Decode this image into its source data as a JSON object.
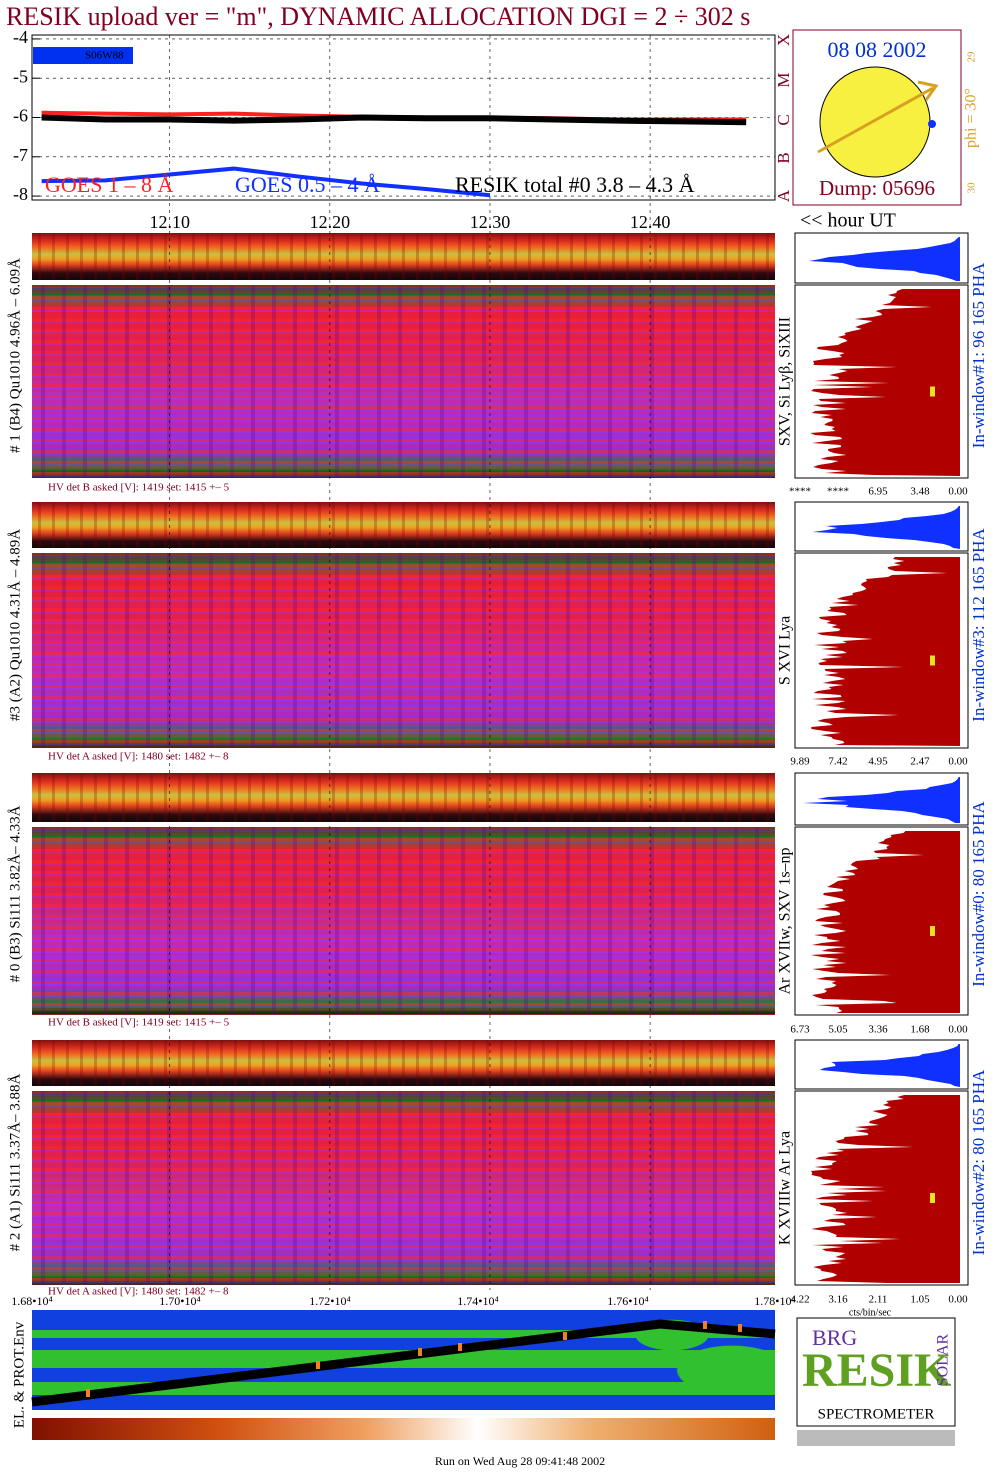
{
  "title": "RESIK upload ver = \"m\", DYNAMIC ALLOCATION  DGI =   2 ÷ 302 s",
  "chart_data": {
    "type": "line",
    "x": [
      12.02,
      12.06,
      12.1,
      12.14,
      12.18,
      12.22,
      12.26,
      12.3,
      12.34,
      12.38,
      12.42,
      12.46
    ],
    "series": [
      {
        "name": "GOES 1 – 8 Å",
        "color": "#ff2020",
        "values": [
          -5.88,
          -5.9,
          -5.92,
          -5.9,
          -5.95,
          -5.98,
          -6.0,
          -6.0,
          -6.02,
          -6.05,
          -6.05,
          -6.05
        ]
      },
      {
        "name": "GOES 0.5 – 4 Å",
        "color": "#1030ff",
        "values": [
          -7.62,
          -7.6,
          -7.45,
          -7.3,
          -7.5,
          -7.68,
          -7.82,
          -7.98,
          null,
          null,
          null,
          null
        ]
      },
      {
        "name": "RESIK total #0  3.8 – 4.3 Å",
        "color": "#000000",
        "values": [
          -6.0,
          -6.05,
          -6.05,
          -6.08,
          -6.05,
          -6.0,
          -6.02,
          -6.02,
          -6.05,
          -6.08,
          -6.1,
          -6.12
        ]
      }
    ],
    "xlim": [
      12.014,
      12.478
    ],
    "ylim": [
      -8.1,
      -3.9
    ],
    "xticks": [
      {
        "value": 12.1,
        "label": "12.10"
      },
      {
        "value": 12.2,
        "label": "12.20"
      },
      {
        "value": 12.3,
        "label": "12.30"
      },
      {
        "value": 12.4,
        "label": "12.40"
      }
    ],
    "yticks": [
      -4,
      -5,
      -6,
      -7,
      -8
    ],
    "grid": true,
    "position_label": "S06W88"
  },
  "sun": {
    "date": "08 08 2002",
    "phi": "phi = 30°",
    "top": "29",
    "bottom": "30",
    "dump": "Dump: 05696",
    "classes": [
      "X",
      "M",
      "C",
      "B",
      "A"
    ]
  },
  "time_label": "<< hour UT",
  "panels": [
    {
      "label": "# 1 (B4) Qu1010 4.96Å – 6.09Å",
      "lines": "SXV, Si Lyβ, SiXIII",
      "window": "In-window#1:   96 165  PHA",
      "hv": "HV det B asked [V]:  1419 set:  1415  +–    5",
      "scale": [
        "****",
        "****",
        "6.95",
        "3.48",
        "0.00"
      ]
    },
    {
      "label": "#3 (A2) Qu1010  4.31Å – 4.89Å",
      "lines": "S XVI Lya",
      "window": "In-window#3:  112 165  PHA",
      "hv": "HV det A asked [V]:  1480 set:  1482  +–    8",
      "scale": [
        "9.89",
        "7.42",
        "4.95",
        "2.47",
        "0.00"
      ]
    },
    {
      "label": "# 0 (B3) Si111  3.82Å– 4.33Å",
      "lines": "Ar XVIIw,  SXV 1s–np",
      "window": "In-window#0:   80 165  PHA",
      "hv": "HV det B asked [V]:  1419 set:  1415  +–    5",
      "scale": [
        "6.73",
        "5.05",
        "3.36",
        "1.68",
        "0.00"
      ]
    },
    {
      "label": "# 2 (A1) Si111  3.37Å– 3.88Å",
      "lines": "K XVIIIw  Ar Lya",
      "window": "In-window#2:   80 165  PHA",
      "hv": "HV det A asked [V]:  1480 set:  1482  +–    8",
      "scale": [
        "4.22",
        "3.16",
        "2.11",
        "1.05",
        "0.00"
      ]
    }
  ],
  "scale_unit": "cts/bin/sec",
  "bottom_axis": [
    "1.68•10⁴",
    "1.70•10⁴",
    "1.72•10⁴",
    "1.74•10⁴",
    "1.76•10⁴",
    "1.78•10⁴"
  ],
  "env_label": "EL. & PROT.Env",
  "logo": {
    "top": "BRG",
    "main": "RESIK",
    "side": "SOLAR",
    "bottom": "SPECTROMETER"
  },
  "footer": "Run on Wed Aug 28 09:41:48 2002"
}
